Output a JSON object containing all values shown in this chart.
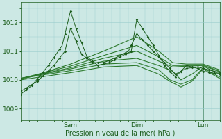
{
  "xlabel": "Pression niveau de la mer( hPa )",
  "bg_color": "#cce8e4",
  "grid_color": "#99cccc",
  "line_color_dark": "#1a5c1a",
  "line_color_mid": "#2d7a2d",
  "yticks": [
    1009,
    1010,
    1011,
    1012
  ],
  "ylim": [
    1008.6,
    1012.7
  ],
  "xlim": [
    0,
    72
  ],
  "xtick_positions": [
    18,
    42,
    66
  ],
  "xtick_labels": [
    "Sam",
    "Dim",
    "Lun"
  ],
  "vline_positions": [
    18,
    42,
    66
  ],
  "figsize": [
    3.2,
    2.0
  ],
  "dpi": 100
}
